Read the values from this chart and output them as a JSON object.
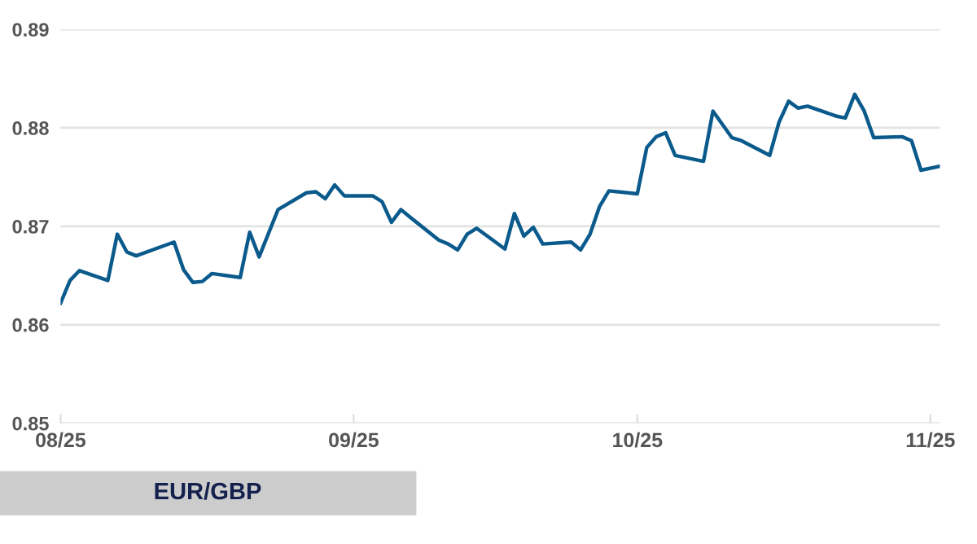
{
  "chart_data": {
    "type": "line",
    "x": [
      "2025-08-01",
      "2025-08-02",
      "2025-08-03",
      "2025-08-06",
      "2025-08-07",
      "2025-08-08",
      "2025-08-09",
      "2025-08-13",
      "2025-08-14",
      "2025-08-15",
      "2025-08-16",
      "2025-08-17",
      "2025-08-20",
      "2025-08-21",
      "2025-08-22",
      "2025-08-24",
      "2025-08-27",
      "2025-08-28",
      "2025-08-29",
      "2025-08-30",
      "2025-08-31",
      "2025-09-03",
      "2025-09-04",
      "2025-09-05",
      "2025-09-06",
      "2025-09-07",
      "2025-09-10",
      "2025-09-11",
      "2025-09-12",
      "2025-09-13",
      "2025-09-14",
      "2025-09-17",
      "2025-09-18",
      "2025-09-19",
      "2025-09-20",
      "2025-09-21",
      "2025-09-24",
      "2025-09-25",
      "2025-09-26",
      "2025-09-27",
      "2025-09-28",
      "2025-10-01",
      "2025-10-02",
      "2025-10-03",
      "2025-10-04",
      "2025-10-05",
      "2025-10-08",
      "2025-10-09",
      "2025-10-11",
      "2025-10-12",
      "2025-10-15",
      "2025-10-16",
      "2025-10-17",
      "2025-10-18",
      "2025-10-19",
      "2025-10-22",
      "2025-10-23",
      "2025-10-24",
      "2025-10-25",
      "2025-10-26",
      "2025-10-29",
      "2025-10-30",
      "2025-10-31",
      "2025-11-02"
    ],
    "series": [
      {
        "name": "EUR/GBP",
        "color": "#0b5a8c",
        "values": [
          0.8622,
          0.8645,
          0.8655,
          0.8645,
          0.8692,
          0.8674,
          0.867,
          0.8684,
          0.8656,
          0.8643,
          0.8644,
          0.8652,
          0.8648,
          0.8694,
          0.8669,
          0.8717,
          0.8734,
          0.8735,
          0.8728,
          0.8742,
          0.8731,
          0.8731,
          0.8725,
          0.8704,
          0.8717,
          0.8709,
          0.8686,
          0.8682,
          0.8676,
          0.8692,
          0.8698,
          0.8677,
          0.8713,
          0.869,
          0.8699,
          0.8682,
          0.8684,
          0.8676,
          0.8692,
          0.872,
          0.8736,
          0.8733,
          0.878,
          0.8791,
          0.8795,
          0.8772,
          0.8766,
          0.8817,
          0.879,
          0.8787,
          0.8772,
          0.8806,
          0.8827,
          0.882,
          0.8822,
          0.8812,
          0.881,
          0.8834,
          0.8817,
          0.879,
          0.8791,
          0.8787,
          0.8757,
          0.8761
        ]
      }
    ],
    "xlim": [
      "2025-08-01",
      "2025-11-02"
    ],
    "xticks": [
      {
        "value": "2025-08-01",
        "label": "08/25"
      },
      {
        "value": "2025-09-01",
        "label": "09/25"
      },
      {
        "value": "2025-10-01",
        "label": "10/25"
      },
      {
        "value": "2025-11-01",
        "label": "11/25"
      }
    ],
    "ylim": [
      0.85,
      0.89
    ],
    "yticks": [
      {
        "value": 0.85,
        "label": "0.85"
      },
      {
        "value": 0.86,
        "label": "0.86"
      },
      {
        "value": 0.87,
        "label": "0.87"
      },
      {
        "value": 0.88,
        "label": "0.88"
      },
      {
        "value": 0.89,
        "label": "0.89"
      }
    ],
    "grid": "y",
    "legend": "bottom left",
    "marker": "none",
    "line_style": "solid"
  }
}
